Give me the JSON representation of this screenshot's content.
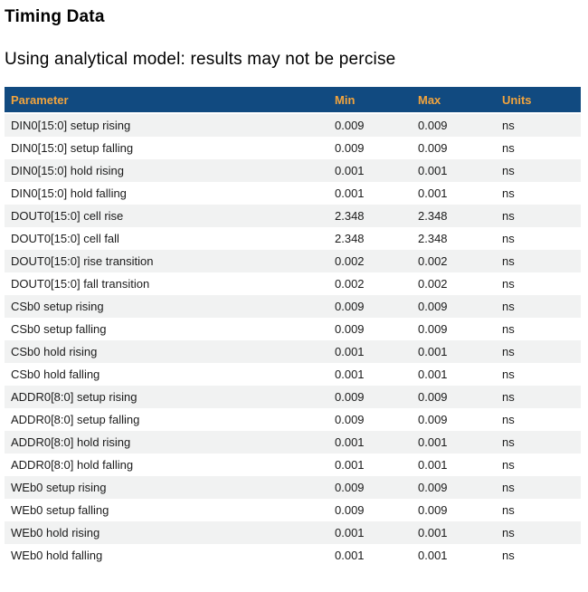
{
  "page": {
    "title": "Timing Data",
    "subtitle": "Using analytical model: results may not be percise"
  },
  "table": {
    "columns": [
      "Parameter",
      "Min",
      "Max",
      "Units"
    ],
    "rows": [
      {
        "parameter": "DIN0[15:0] setup rising",
        "min": "0.009",
        "max": "0.009",
        "units": "ns"
      },
      {
        "parameter": "DIN0[15:0] setup falling",
        "min": "0.009",
        "max": "0.009",
        "units": "ns"
      },
      {
        "parameter": "DIN0[15:0] hold rising",
        "min": "0.001",
        "max": "0.001",
        "units": "ns"
      },
      {
        "parameter": "DIN0[15:0] hold falling",
        "min": "0.001",
        "max": "0.001",
        "units": "ns"
      },
      {
        "parameter": "DOUT0[15:0] cell rise",
        "min": "2.348",
        "max": "2.348",
        "units": "ns"
      },
      {
        "parameter": "DOUT0[15:0] cell fall",
        "min": "2.348",
        "max": "2.348",
        "units": "ns"
      },
      {
        "parameter": "DOUT0[15:0] rise transition",
        "min": "0.002",
        "max": "0.002",
        "units": "ns"
      },
      {
        "parameter": "DOUT0[15:0] fall transition",
        "min": "0.002",
        "max": "0.002",
        "units": "ns"
      },
      {
        "parameter": "CSb0 setup rising",
        "min": "0.009",
        "max": "0.009",
        "units": "ns"
      },
      {
        "parameter": "CSb0 setup falling",
        "min": "0.009",
        "max": "0.009",
        "units": "ns"
      },
      {
        "parameter": "CSb0 hold rising",
        "min": "0.001",
        "max": "0.001",
        "units": "ns"
      },
      {
        "parameter": "CSb0 hold falling",
        "min": "0.001",
        "max": "0.001",
        "units": "ns"
      },
      {
        "parameter": "ADDR0[8:0] setup rising",
        "min": "0.009",
        "max": "0.009",
        "units": "ns"
      },
      {
        "parameter": "ADDR0[8:0] setup falling",
        "min": "0.009",
        "max": "0.009",
        "units": "ns"
      },
      {
        "parameter": "ADDR0[8:0] hold rising",
        "min": "0.001",
        "max": "0.001",
        "units": "ns"
      },
      {
        "parameter": "ADDR0[8:0] hold falling",
        "min": "0.001",
        "max": "0.001",
        "units": "ns"
      },
      {
        "parameter": "WEb0 setup rising",
        "min": "0.009",
        "max": "0.009",
        "units": "ns"
      },
      {
        "parameter": "WEb0 setup falling",
        "min": "0.009",
        "max": "0.009",
        "units": "ns"
      },
      {
        "parameter": "WEb0 hold rising",
        "min": "0.001",
        "max": "0.001",
        "units": "ns"
      },
      {
        "parameter": "WEb0 hold falling",
        "min": "0.001",
        "max": "0.001",
        "units": "ns"
      }
    ]
  },
  "colors": {
    "header_bg": "#114a80",
    "header_text": "#f2a43d",
    "stripe_row_bg": "#f1f2f2",
    "row_text": "#1b1b1b"
  }
}
